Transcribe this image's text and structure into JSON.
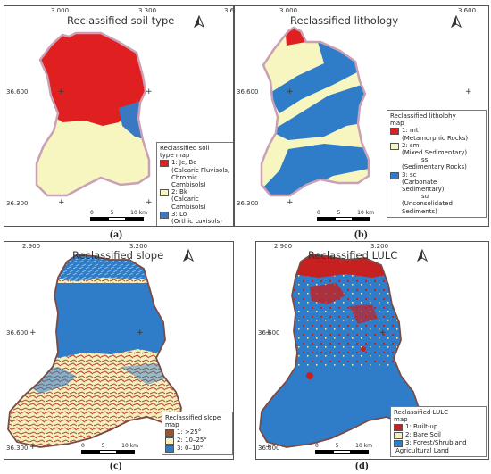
{
  "panels": [
    {
      "id": "a",
      "title": "Reclassified soil type",
      "caption": "(a)",
      "coords": {
        "x1": "3.000",
        "x2": "3.300",
        "x3": "3.6",
        "y1": "36.600",
        "y2": "36.300"
      },
      "legend": {
        "title": [
          "Reclassified soil",
          "type map"
        ],
        "items": [
          {
            "color": "#e02020",
            "lines": [
              "1: Jc, Bc",
              "(Calcaric Fluvisols,",
              "Chromic Cambisols)"
            ]
          },
          {
            "color": "#f7f5c0",
            "lines": [
              "2: Bk",
              "(Calcaric Cambisols)"
            ]
          },
          {
            "color": "#3a78c2",
            "lines": [
              "3: Lo",
              "(Orthic Luvisols)"
            ]
          }
        ]
      },
      "scale": [
        "0",
        "5",
        "10 km"
      ]
    },
    {
      "id": "b",
      "title": "Reclassified lithology",
      "caption": "(b)",
      "coords": {
        "x1": "3.000",
        "x2": "3.600",
        "y1": "36.600",
        "y2": "36.300"
      },
      "legend": {
        "title": [
          "Reclassified litholohy",
          "map"
        ],
        "items": [
          {
            "color": "#e02020",
            "lines": [
              "1: mt",
              "(Metamorphic Rocks)"
            ]
          },
          {
            "color": "#f7f5c0",
            "lines": [
              "2: sm",
              "(Mixed Sedimentary)",
              "ss",
              "(Sedimentary Rocks)"
            ]
          },
          {
            "color": "#2f7dc8",
            "lines": [
              "3: sc",
              "(Carbonate Sedimentary),",
              "su",
              "(Unconsolidated Sediments)"
            ]
          }
        ]
      },
      "scale": [
        "0",
        "5",
        "10 km"
      ]
    },
    {
      "id": "c",
      "title": "Reclassified slope",
      "caption": "(c)",
      "coords": {
        "x1": "2.900",
        "x2": "3.200",
        "y1": "36.600",
        "y2": "36.300"
      },
      "legend": {
        "title": [
          "Reclassified slope",
          "map"
        ],
        "items": [
          {
            "color": "#a0522d",
            "lines": [
              "1: >25°"
            ]
          },
          {
            "color": "#f3f0c0",
            "lines": [
              "2: 10–25°"
            ]
          },
          {
            "color": "#2f7dc8",
            "lines": [
              "3: 0–10°"
            ]
          }
        ]
      },
      "scale": [
        "0",
        "5",
        "10 km"
      ]
    },
    {
      "id": "d",
      "title": "Reclassified LULC",
      "caption": "(d)",
      "coords": {
        "x1": "2.900",
        "x2": "3.200",
        "y1": "36.600",
        "y2": "36.300"
      },
      "legend": {
        "title": [
          "Reclassified LULC",
          "map"
        ],
        "items": [
          {
            "color": "#c62020",
            "lines": [
              "1: Built-up"
            ]
          },
          {
            "color": "#f3f0c0",
            "lines": [
              "2: Bare Soil"
            ]
          },
          {
            "color": "#2f7dc8",
            "lines": [
              "3: Forest/Shrubland",
              "Agricultural Land"
            ]
          }
        ]
      },
      "scale": [
        "0",
        "5",
        "10 km"
      ]
    }
  ]
}
